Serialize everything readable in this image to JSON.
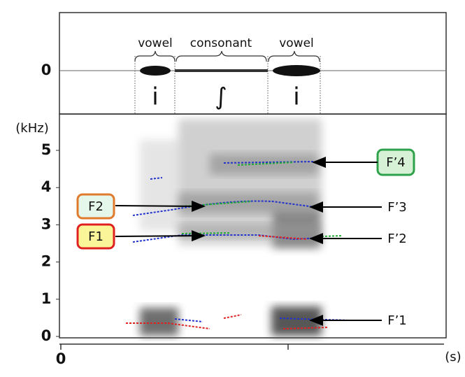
{
  "waveform": {
    "zero_label": "0"
  },
  "segments": [
    {
      "label": "vowel",
      "symbol": "i"
    },
    {
      "label": "consonant",
      "symbol": "∫"
    },
    {
      "label": "vowel",
      "symbol": "i"
    }
  ],
  "spectrogram": {
    "unit": "(kHz)",
    "ticks": [
      "0",
      "1",
      "2",
      "3",
      "4",
      "5"
    ]
  },
  "x_axis": {
    "tick": "0",
    "unit": "(s)"
  },
  "annotations": {
    "right": [
      "F’4",
      "F’3",
      "F’2",
      "F’1"
    ],
    "left": [
      "F2",
      "F1"
    ]
  }
}
